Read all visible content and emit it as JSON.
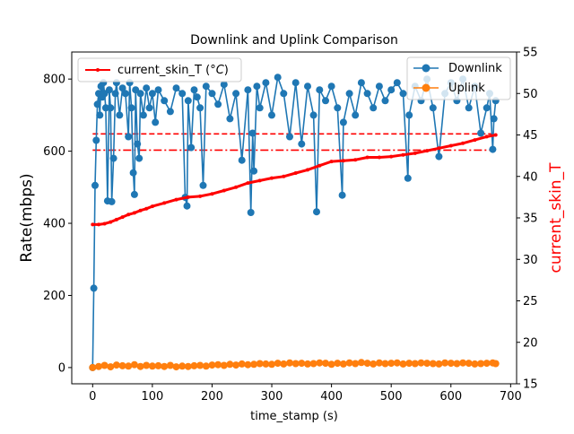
{
  "chart_data": {
    "type": "line",
    "title": "Downlink and Uplink Comparison",
    "xlabel": "time_stamp (s)",
    "ylabel": "Rate(mbps)",
    "y2label": "current_skin_T",
    "xlim": [
      -35,
      710
    ],
    "ylim": [
      -45,
      875
    ],
    "y2lim": [
      15,
      55
    ],
    "xticks": [
      0,
      100,
      200,
      300,
      400,
      500,
      600,
      700
    ],
    "yticks": [
      0,
      200,
      400,
      600,
      800
    ],
    "y2ticks": [
      15,
      20,
      25,
      30,
      35,
      40,
      45,
      50,
      55
    ],
    "grid": false,
    "legend_left": {
      "placement": "upper-left",
      "label_prefix": "current_skin_T (",
      "label_unit": "°C",
      "label_suffix": ")"
    },
    "legend_right": {
      "placement": "upper-right",
      "entries": [
        "Downlink",
        "Uplink"
      ]
    },
    "colors": {
      "downlink": "#1f77b4",
      "uplink": "#ff7f0e",
      "skin": "#ff0000",
      "y2label": "#ff0000"
    },
    "series": [
      {
        "name": "Downlink",
        "axis": "left",
        "x": [
          0,
          2,
          4,
          6,
          8,
          10,
          12,
          14,
          16,
          18,
          20,
          22,
          25,
          28,
          30,
          32,
          35,
          38,
          40,
          45,
          50,
          55,
          60,
          62,
          65,
          68,
          70,
          72,
          75,
          78,
          80,
          85,
          90,
          95,
          100,
          105,
          110,
          120,
          130,
          140,
          150,
          155,
          158,
          160,
          165,
          170,
          175,
          180,
          185,
          190,
          200,
          210,
          220,
          230,
          240,
          250,
          260,
          265,
          268,
          270,
          275,
          280,
          290,
          300,
          310,
          320,
          330,
          340,
          350,
          360,
          370,
          375,
          380,
          390,
          400,
          410,
          418,
          420,
          430,
          440,
          450,
          460,
          470,
          480,
          490,
          500,
          510,
          520,
          528,
          530,
          540,
          550,
          560,
          570,
          580,
          590,
          600,
          610,
          620,
          630,
          640,
          650,
          660,
          665,
          670,
          672,
          675
        ],
        "values": [
          0,
          220,
          505,
          630,
          730,
          760,
          700,
          780,
          750,
          790,
          760,
          720,
          462,
          770,
          720,
          460,
          580,
          760,
          790,
          700,
          775,
          760,
          640,
          790,
          720,
          540,
          480,
          770,
          620,
          580,
          760,
          700,
          775,
          720,
          760,
          680,
          770,
          740,
          710,
          775,
          760,
          472,
          448,
          740,
          610,
          770,
          750,
          720,
          505,
          780,
          760,
          730,
          785,
          690,
          760,
          575,
          770,
          430,
          650,
          545,
          780,
          720,
          790,
          700,
          805,
          760,
          640,
          790,
          620,
          780,
          700,
          432,
          770,
          740,
          780,
          720,
          478,
          680,
          760,
          700,
          790,
          760,
          720,
          780,
          740,
          770,
          790,
          760,
          525,
          700,
          780,
          740,
          800,
          720,
          585,
          760,
          790,
          740,
          800,
          720,
          780,
          650,
          720,
          760,
          605,
          690,
          740
        ]
      },
      {
        "name": "Uplink",
        "axis": "left",
        "x": [
          0,
          10,
          20,
          30,
          40,
          50,
          60,
          70,
          80,
          90,
          100,
          110,
          120,
          130,
          140,
          150,
          160,
          170,
          180,
          190,
          200,
          210,
          220,
          230,
          240,
          250,
          260,
          270,
          280,
          290,
          300,
          310,
          320,
          330,
          340,
          350,
          360,
          370,
          380,
          390,
          400,
          410,
          420,
          430,
          440,
          450,
          460,
          470,
          480,
          490,
          500,
          510,
          520,
          530,
          540,
          550,
          560,
          570,
          580,
          590,
          600,
          610,
          620,
          630,
          640,
          650,
          660,
          670,
          675
        ],
        "values": [
          0,
          3,
          6,
          2,
          7,
          5,
          4,
          8,
          3,
          6,
          4,
          5,
          3,
          6,
          2,
          4,
          3,
          5,
          6,
          4,
          7,
          8,
          6,
          9,
          7,
          10,
          8,
          9,
          11,
          10,
          9,
          12,
          10,
          13,
          11,
          12,
          10,
          11,
          13,
          12,
          9,
          12,
          10,
          13,
          11,
          14,
          12,
          10,
          13,
          11,
          12,
          13,
          10,
          12,
          11,
          13,
          12,
          11,
          10,
          13,
          12,
          11,
          13,
          12,
          10,
          11,
          12,
          13,
          11
        ]
      },
      {
        "name": "current_skin_T",
        "axis": "right",
        "x": [
          0,
          10,
          20,
          30,
          40,
          50,
          60,
          70,
          80,
          90,
          100,
          120,
          140,
          160,
          180,
          200,
          220,
          240,
          260,
          280,
          300,
          320,
          340,
          360,
          380,
          400,
          420,
          440,
          460,
          480,
          500,
          520,
          540,
          560,
          580,
          600,
          620,
          640,
          660,
          675
        ],
        "values": [
          34.2,
          34.2,
          34.3,
          34.5,
          34.8,
          35.1,
          35.4,
          35.6,
          35.9,
          36.1,
          36.4,
          36.8,
          37.2,
          37.5,
          37.6,
          37.9,
          38.3,
          38.7,
          39.2,
          39.5,
          39.8,
          40.0,
          40.4,
          40.8,
          41.3,
          41.8,
          41.9,
          42.0,
          42.3,
          42.3,
          42.4,
          42.6,
          42.8,
          43.1,
          43.4,
          43.7,
          44.0,
          44.4,
          44.8,
          45.0
        ]
      }
    ],
    "reference_lines": [
      {
        "style": "dashed",
        "axis": "left",
        "value": 648,
        "x_from": 0,
        "x_to": 675
      },
      {
        "style": "dashdot",
        "axis": "left",
        "value": 603,
        "x_from": 0,
        "x_to": 675
      }
    ]
  }
}
